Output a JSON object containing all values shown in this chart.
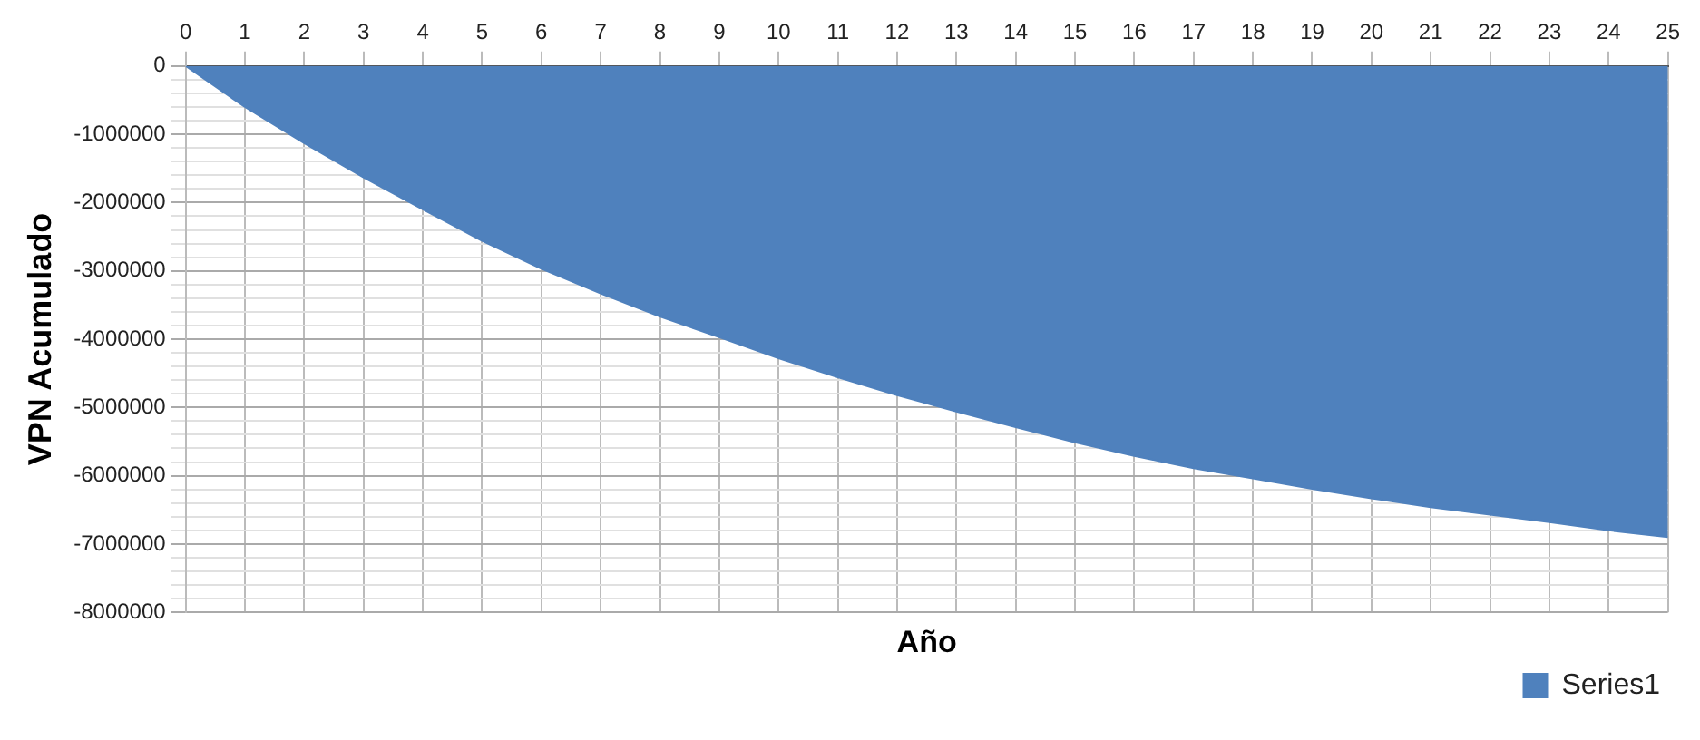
{
  "chart_data": {
    "type": "area",
    "xlabel": "Año",
    "ylabel": "VPN Acumulado",
    "x": [
      0,
      1,
      2,
      3,
      4,
      5,
      6,
      7,
      8,
      9,
      10,
      11,
      12,
      13,
      14,
      15,
      16,
      17,
      18,
      19,
      20,
      21,
      22,
      23,
      24,
      25
    ],
    "series": [
      {
        "name": "Series1",
        "color": "#4f81bd",
        "values": [
          0,
          -600000,
          -1130000,
          -1630000,
          -2100000,
          -2560000,
          -2970000,
          -3330000,
          -3670000,
          -3970000,
          -4280000,
          -4560000,
          -4820000,
          -5060000,
          -5290000,
          -5510000,
          -5710000,
          -5890000,
          -6040000,
          -6190000,
          -6330000,
          -6460000,
          -6570000,
          -6680000,
          -6800000,
          -6900000
        ]
      }
    ],
    "xlim": [
      0,
      25
    ],
    "xticks": [
      0,
      1,
      2,
      3,
      4,
      5,
      6,
      7,
      8,
      9,
      10,
      11,
      12,
      13,
      14,
      15,
      16,
      17,
      18,
      19,
      20,
      21,
      22,
      23,
      24,
      25
    ],
    "ylim": [
      -8000000,
      0
    ],
    "yticks": [
      -8000000,
      {
        "value": -7800000,
        "label": null
      },
      {
        "value": -7600000,
        "label": null
      },
      {
        "value": -7400000,
        "label": null
      },
      {
        "value": -7200000,
        "label": null
      },
      -7000000,
      {
        "value": -6800000,
        "label": null
      },
      {
        "value": -6600000,
        "label": null
      },
      {
        "value": -6400000,
        "label": null
      },
      {
        "value": -6200000,
        "label": null
      },
      -6000000,
      {
        "value": -5800000,
        "label": null
      },
      {
        "value": -5600000,
        "label": null
      },
      {
        "value": -5400000,
        "label": null
      },
      {
        "value": -5200000,
        "label": null
      },
      -5000000,
      {
        "value": -4800000,
        "label": null
      },
      {
        "value": -4600000,
        "label": null
      },
      {
        "value": -4400000,
        "label": null
      },
      {
        "value": -4200000,
        "label": null
      },
      -4000000,
      {
        "value": -3800000,
        "label": null
      },
      {
        "value": -3600000,
        "label": null
      },
      {
        "value": -3400000,
        "label": null
      },
      {
        "value": -3200000,
        "label": null
      },
      -3000000,
      {
        "value": -2800000,
        "label": null
      },
      {
        "value": -2600000,
        "label": null
      },
      {
        "value": -2400000,
        "label": null
      },
      {
        "value": -2200000,
        "label": null
      },
      -2000000,
      {
        "value": -1800000,
        "label": null
      },
      {
        "value": -1600000,
        "label": null
      },
      {
        "value": -1400000,
        "label": null
      },
      {
        "value": -1200000,
        "label": null
      },
      -1000000,
      {
        "value": -800000,
        "label": null
      },
      {
        "value": -600000,
        "label": null
      },
      {
        "value": -400000,
        "label": null
      },
      {
        "value": -200000,
        "label": null
      },
      0
    ],
    "grid": true,
    "legend": "bottom right",
    "marker": "none"
  }
}
